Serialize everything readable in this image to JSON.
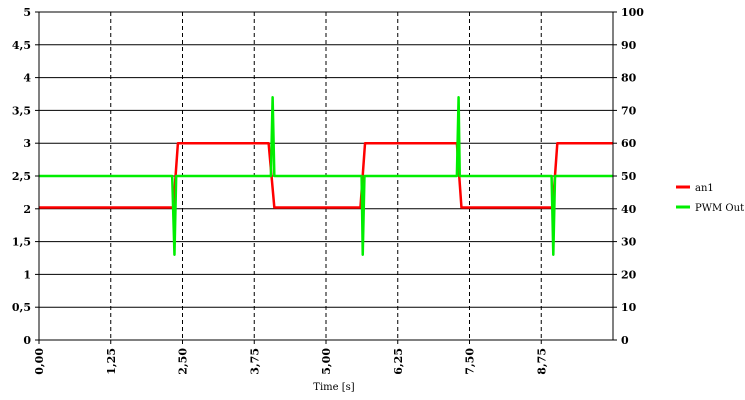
{
  "chart_data": {
    "type": "line",
    "xlabel": "Time [s]",
    "xlim": [
      0,
      10
    ],
    "xticks": [
      "0,00",
      "1,25",
      "2,50",
      "3,75",
      "5,00",
      "6,25",
      "7,50",
      "8,75"
    ],
    "xtick_values": [
      0,
      1.25,
      2.5,
      3.75,
      5.0,
      6.25,
      7.5,
      8.75
    ],
    "ylim_left": [
      0,
      5
    ],
    "yticks_left": [
      "0",
      "0,5",
      "1",
      "1,5",
      "2",
      "2,5",
      "3",
      "3,5",
      "4",
      "4,5",
      "5"
    ],
    "ylim_right": [
      0,
      100
    ],
    "yticks_right": [
      "0",
      "10",
      "20",
      "30",
      "40",
      "50",
      "60",
      "70",
      "80",
      "90",
      "100"
    ],
    "grid": {
      "horizontal": "solid",
      "vertical": "dashed"
    },
    "legend_position": "right",
    "series": [
      {
        "name": "an1",
        "color": "#ff0000",
        "axis": "left",
        "x": [
          0,
          2.34,
          2.42,
          4.0,
          4.1,
          5.6,
          5.68,
          7.28,
          7.36,
          8.95,
          9.03,
          10
        ],
        "y": [
          2.02,
          2.02,
          3.0,
          3.0,
          2.02,
          2.02,
          3.0,
          3.0,
          2.02,
          2.02,
          3.0,
          3.0
        ]
      },
      {
        "name": "PWM Out",
        "color": "#00ee00",
        "axis": "right",
        "x": [
          0,
          2.32,
          2.36,
          2.39,
          2.41,
          2.44,
          4.04,
          4.07,
          4.1,
          4.12,
          4.15,
          5.62,
          5.64,
          5.67,
          5.7,
          5.73,
          7.28,
          7.31,
          7.33,
          7.36,
          7.39,
          8.93,
          8.96,
          8.99,
          9.02,
          9.06,
          10
        ],
        "y": [
          50,
          50,
          26,
          50,
          50,
          50,
          50,
          74,
          50,
          50,
          50,
          50,
          26,
          50,
          50,
          50,
          50,
          74,
          50,
          50,
          50,
          50,
          26,
          50,
          50,
          50,
          50
        ]
      }
    ]
  }
}
